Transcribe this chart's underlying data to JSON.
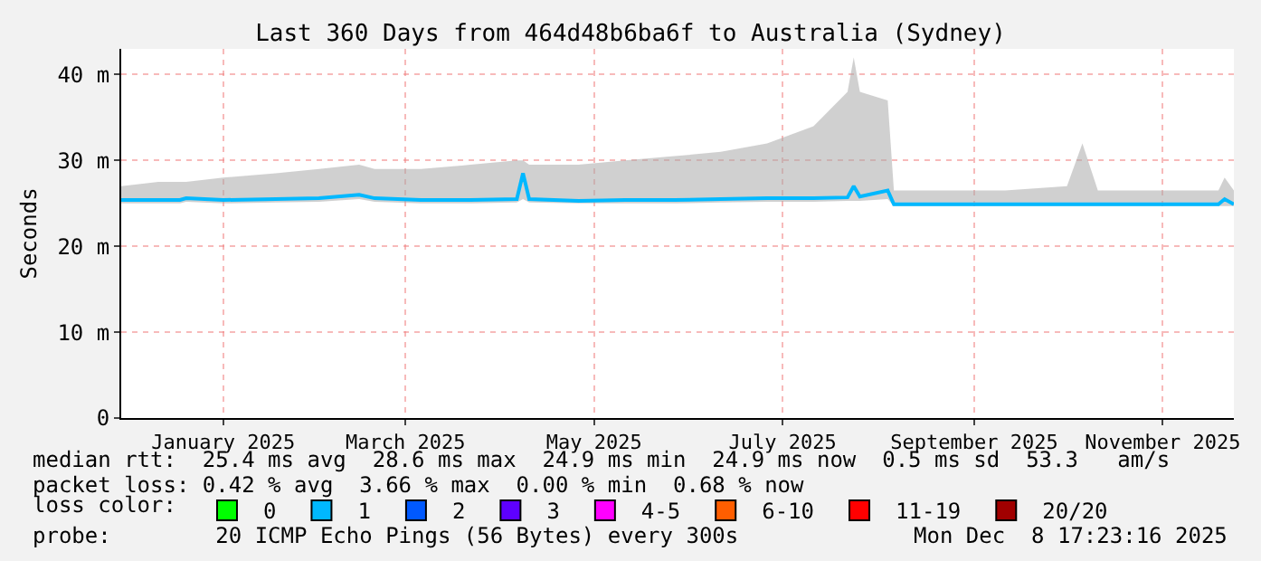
{
  "chart_data": {
    "type": "line",
    "title": "Last 360 Days from 464d48b6ba6f to Australia (Sydney)",
    "ylabel": "Seconds",
    "legend_title": "loss color:",
    "x": [
      "2024-12-13",
      "2024-12-25",
      "2025-01-01",
      "2025-01-03",
      "2025-01-15",
      "2025-02-01",
      "2025-02-15",
      "2025-02-28",
      "2025-03-05",
      "2025-03-20",
      "2025-04-05",
      "2025-04-20",
      "2025-04-22",
      "2025-04-24",
      "2025-05-10",
      "2025-05-25",
      "2025-06-10",
      "2025-06-25",
      "2025-07-10",
      "2025-07-25",
      "2025-08-05",
      "2025-08-07",
      "2025-08-09",
      "2025-08-18",
      "2025-08-20",
      "2025-09-05",
      "2025-09-25",
      "2025-10-15",
      "2025-10-20",
      "2025-10-25",
      "2025-11-10",
      "2025-11-25",
      "2025-12-03",
      "2025-12-05",
      "2025-12-08"
    ],
    "series": [
      {
        "name": "0",
        "color": "#00ff00",
        "values": [
          null,
          null,
          null,
          null,
          null,
          null,
          null,
          null,
          null,
          null,
          null,
          null,
          null,
          null,
          null,
          null,
          null,
          null,
          null,
          null,
          null,
          null,
          null,
          null,
          null,
          null,
          null,
          null,
          null,
          null,
          null,
          null,
          null,
          null,
          null
        ]
      },
      {
        "name": "1",
        "color": "#00b8ff",
        "values": [
          25.4,
          25.4,
          25.4,
          25.6,
          25.4,
          25.5,
          25.6,
          26.0,
          25.6,
          25.4,
          25.4,
          25.5,
          28.5,
          25.5,
          25.3,
          25.4,
          25.4,
          25.5,
          25.6,
          25.6,
          25.7,
          27.0,
          25.8,
          26.5,
          24.9,
          24.9,
          24.9,
          24.9,
          24.9,
          24.9,
          24.9,
          24.9,
          24.9,
          25.5,
          24.9
        ],
        "lower": [
          25,
          25,
          25,
          25.2,
          25,
          25.1,
          25.2,
          25.5,
          25.2,
          25,
          25,
          25.1,
          25.5,
          25.1,
          25,
          25,
          25,
          25.1,
          25.2,
          25.2,
          25.3,
          25.3,
          25.3,
          25.5,
          24.7,
          24.7,
          24.7,
          24.7,
          24.7,
          24.7,
          24.7,
          24.7,
          24.7,
          24.7,
          24.7
        ],
        "upper": [
          27,
          27.5,
          27.5,
          27.5,
          28,
          28.5,
          29,
          29.5,
          29,
          29,
          29.5,
          30,
          30,
          29.5,
          29.5,
          30,
          30.5,
          31,
          32,
          34,
          38,
          42,
          38,
          37,
          26.5,
          26.5,
          26.5,
          27,
          32,
          26.5,
          26.5,
          26.5,
          26.5,
          28,
          26.5
        ]
      },
      {
        "name": "2",
        "color": "#0059ff",
        "values": [
          null,
          null,
          null,
          null,
          null,
          null,
          null,
          null,
          null,
          null,
          null,
          null,
          null,
          null,
          null,
          null,
          null,
          null,
          null,
          null,
          null,
          null,
          null,
          null,
          null,
          null,
          null,
          null,
          null,
          null,
          null,
          null,
          null,
          null,
          null
        ]
      },
      {
        "name": "3",
        "color": "#5e00ff",
        "values": [
          null,
          null,
          null,
          null,
          null,
          null,
          null,
          null,
          null,
          null,
          null,
          null,
          null,
          null,
          null,
          null,
          null,
          null,
          null,
          null,
          null,
          null,
          null,
          null,
          null,
          null,
          null,
          null,
          null,
          null,
          null,
          null,
          null,
          null,
          null
        ]
      },
      {
        "name": "4-5",
        "color": "#ff00ff",
        "values": [
          null,
          null,
          null,
          null,
          null,
          null,
          null,
          null,
          null,
          null,
          null,
          null,
          null,
          null,
          null,
          null,
          null,
          null,
          null,
          null,
          null,
          null,
          null,
          null,
          null,
          null,
          null,
          null,
          null,
          null,
          null,
          null,
          null,
          null,
          null
        ]
      },
      {
        "name": "6-10",
        "color": "#ff5e00",
        "values": [
          null,
          null,
          null,
          null,
          null,
          null,
          null,
          null,
          null,
          null,
          null,
          null,
          null,
          null,
          null,
          null,
          null,
          null,
          null,
          null,
          null,
          null,
          null,
          null,
          null,
          null,
          null,
          null,
          null,
          null,
          null,
          null,
          null,
          null,
          null
        ]
      },
      {
        "name": "11-19",
        "color": "#ff0000",
        "values": [
          null,
          null,
          null,
          null,
          null,
          null,
          null,
          null,
          null,
          null,
          null,
          null,
          null,
          null,
          null,
          null,
          null,
          null,
          null,
          null,
          null,
          null,
          null,
          null,
          null,
          null,
          null,
          null,
          null,
          null,
          null,
          null,
          null,
          null,
          null
        ]
      },
      {
        "name": "20/20",
        "color": "#a10000",
        "values": [
          null,
          null,
          null,
          null,
          null,
          null,
          null,
          null,
          null,
          null,
          null,
          null,
          null,
          null,
          null,
          null,
          null,
          null,
          null,
          null,
          null,
          null,
          null,
          null,
          null,
          null,
          null,
          null,
          null,
          null,
          null,
          null,
          null,
          null,
          null
        ]
      }
    ],
    "xlim": [
      "2024-12-13",
      "2025-12-08"
    ],
    "xticks": [
      {
        "value": "2025-01-15",
        "label": "January 2025"
      },
      {
        "value": "2025-03-15",
        "label": "March 2025"
      },
      {
        "value": "2025-05-15",
        "label": "May 2025"
      },
      {
        "value": "2025-07-15",
        "label": "July 2025"
      },
      {
        "value": "2025-09-15",
        "label": "September 2025"
      },
      {
        "value": "2025-11-15",
        "label": "November 2025"
      }
    ],
    "ylim": [
      0,
      43
    ],
    "yticks": [
      0,
      {
        "value": 10,
        "label": "10 m"
      },
      {
        "value": 20,
        "label": "20 m"
      },
      {
        "value": 30,
        "label": "30 m"
      },
      {
        "value": 40,
        "label": "40 m"
      }
    ],
    "grid": true,
    "legend": "bottom",
    "marker": "none",
    "line_style": "solid",
    "annotations": [
      "median rtt:  25.4 ms avg  28.6 ms max  24.9 ms min  24.9 ms now  0.5 ms sd  53.3   am/s",
      "packet loss: 0.42 % avg  3.66 % max  0.00 % min  0.68 % now",
      "probe:        20 ICMP Echo Pings (56 Bytes) every 300s",
      "Mon Dec  8 17:23:16 2025"
    ]
  }
}
